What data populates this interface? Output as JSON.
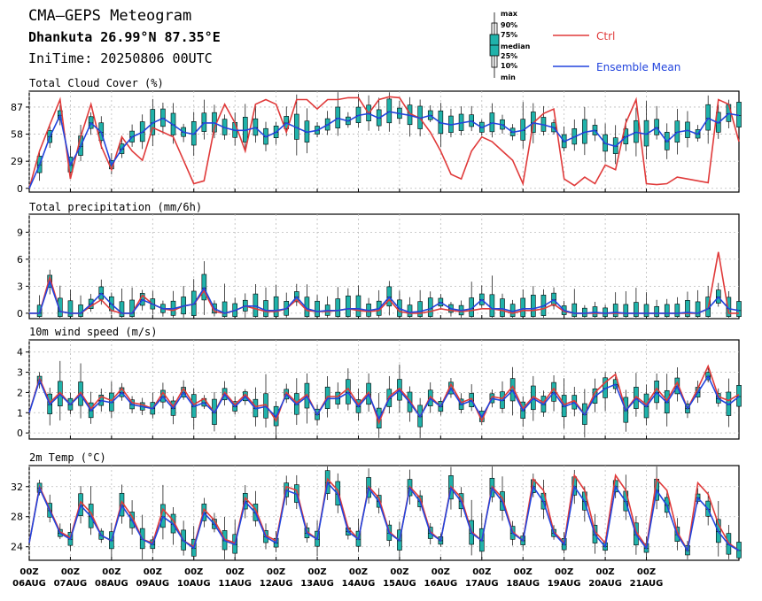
{
  "header": {
    "title": "CMA—GEPS Meteogram",
    "location": "Dhankuta 26.99°N 87.35°E",
    "init_time": "IniTime: 20250806 00UTC"
  },
  "legend": {
    "box_labels": [
      "max",
      "90%",
      "75%",
      "median",
      "25%",
      "10%",
      "min"
    ],
    "ctrl_label": "Ctrl",
    "mean_label": "Ensemble Mean",
    "ctrl_color": "#e03a3a",
    "mean_color": "#2244dd",
    "box_color": "#20b2aa"
  },
  "x_axis": {
    "hour_labels": [
      "00Z",
      "00Z",
      "00Z",
      "00Z",
      "00Z",
      "00Z",
      "00Z",
      "00Z",
      "00Z",
      "00Z",
      "00Z",
      "00Z",
      "00Z",
      "00Z",
      "00Z",
      "00Z"
    ],
    "date_labels": [
      "06AUG",
      "07AUG",
      "08AUG",
      "09AUG",
      "10AUG",
      "11AUG",
      "12AUG",
      "13AUG",
      "14AUG",
      "15AUG",
      "16AUG",
      "17AUG",
      "18AUG",
      "19AUG",
      "20AUG",
      "21AUG"
    ]
  },
  "chart_data": [
    {
      "type": "boxplot",
      "title": "Total Cloud Cover (%)",
      "ylim": [
        -4,
        104
      ],
      "yticks": [
        0,
        29,
        58,
        87
      ],
      "ytick_labels": [
        "0",
        "29",
        "58",
        "87"
      ],
      "step_hours": 6,
      "ctrl": [
        0,
        40,
        68,
        95,
        10,
        55,
        90,
        45,
        20,
        55,
        40,
        30,
        65,
        60,
        55,
        30,
        5,
        8,
        65,
        90,
        70,
        40,
        90,
        95,
        90,
        60,
        95,
        95,
        85,
        95,
        95,
        97,
        97,
        80,
        95,
        98,
        97,
        80,
        75,
        60,
        40,
        15,
        10,
        40,
        55,
        50,
        40,
        30,
        5,
        70,
        80,
        85,
        10,
        3,
        12,
        5,
        25,
        20,
        70,
        95,
        5,
        4,
        5,
        12,
        10,
        8,
        6,
        95,
        90,
        50
      ],
      "mean": [
        0,
        25,
        55,
        78,
        25,
        45,
        70,
        60,
        25,
        42,
        55,
        60,
        70,
        75,
        68,
        60,
        58,
        70,
        70,
        65,
        62,
        62,
        65,
        55,
        60,
        70,
        65,
        60,
        62,
        68,
        75,
        72,
        78,
        80,
        75,
        82,
        80,
        78,
        75,
        78,
        70,
        68,
        70,
        72,
        65,
        70,
        68,
        60,
        62,
        70,
        68,
        65,
        50,
        55,
        60,
        62,
        48,
        45,
        55,
        60,
        58,
        65,
        50,
        60,
        62,
        58,
        75,
        70,
        80,
        78
      ]
    },
    {
      "type": "boxplot",
      "title": "Total precipitation (mm/6h)",
      "ylim": [
        -0.6,
        11
      ],
      "yticks": [
        0,
        3,
        6,
        9
      ],
      "ytick_labels": [
        "0",
        "3",
        "6",
        "9"
      ],
      "step_hours": 6,
      "ctrl": [
        0,
        0,
        4.0,
        0.2,
        0,
        0,
        0.8,
        1.5,
        0.3,
        0,
        0,
        2.0,
        1.0,
        0.5,
        0.3,
        0.8,
        1.0,
        2.5,
        0.2,
        0,
        0.3,
        0.8,
        0.5,
        0.2,
        0.2,
        0.5,
        1.5,
        0.3,
        0.2,
        0.2,
        0.3,
        0.5,
        0.3,
        0.2,
        0.3,
        1.5,
        0.2,
        0,
        0,
        0.2,
        0.5,
        0.3,
        0.2,
        0.3,
        0.5,
        0.5,
        0.3,
        0,
        0.3,
        0.3,
        0.5,
        1.0,
        0.2,
        0,
        0,
        0,
        0,
        0,
        0,
        0,
        0,
        0,
        0,
        0,
        0,
        0,
        0.5,
        6.8,
        0,
        0
      ],
      "mean": [
        0,
        0,
        3.5,
        0.2,
        0,
        0,
        1.0,
        2.2,
        1.0,
        0,
        0,
        1.5,
        1.0,
        0.5,
        0.5,
        0.8,
        1.0,
        2.8,
        0.5,
        0,
        0.3,
        0.8,
        0.8,
        0.3,
        0.3,
        0.5,
        1.8,
        0.5,
        0.2,
        0.3,
        0.3,
        0.5,
        0.5,
        0.3,
        0.5,
        1.8,
        0.5,
        0.1,
        0.2,
        0.5,
        1.2,
        0.5,
        0.3,
        0.5,
        1.5,
        0.5,
        0.5,
        0.2,
        0.5,
        0.5,
        0.8,
        1.5,
        0.3,
        0,
        0,
        0.1,
        0,
        0.1,
        0,
        0,
        0,
        0,
        0,
        0,
        0.1,
        0,
        0.5,
        1.8,
        0.5,
        0.3
      ]
    },
    {
      "type": "boxplot",
      "title": "10m wind speed (m/s)",
      "ylim": [
        -0.3,
        4.6
      ],
      "yticks": [
        0,
        1,
        2,
        3,
        4
      ],
      "ytick_labels": [
        "0",
        "1",
        "2",
        "3",
        "4"
      ],
      "step_hours": 6,
      "ctrl": [
        1.0,
        2.7,
        1.5,
        2.0,
        1.4,
        2.0,
        1.2,
        1.8,
        1.6,
        2.2,
        1.5,
        1.4,
        1.2,
        2.0,
        1.3,
        2.2,
        1.4,
        1.7,
        1.0,
        2.0,
        1.4,
        1.9,
        1.3,
        1.4,
        0.6,
        2.0,
        1.5,
        1.9,
        0.9,
        1.8,
        1.8,
        2.2,
        1.4,
        2.0,
        0.5,
        1.8,
        2.2,
        1.6,
        0.8,
        1.8,
        1.3,
        2.4,
        1.5,
        1.7,
        0.6,
        1.8,
        1.7,
        2.3,
        1.2,
        1.8,
        1.5,
        2.2,
        1.4,
        1.6,
        0.9,
        2.0,
        2.5,
        2.9,
        1.1,
        1.8,
        1.4,
        2.2,
        1.6,
        2.5,
        1.2,
        2.2,
        3.3,
        1.8,
        1.6,
        1.9
      ],
      "mean": [
        1.0,
        2.6,
        1.4,
        1.9,
        1.4,
        1.9,
        1.1,
        1.6,
        1.5,
        2.0,
        1.4,
        1.3,
        1.2,
        1.8,
        1.2,
        2.0,
        1.3,
        1.5,
        1.0,
        1.9,
        1.3,
        1.8,
        1.2,
        1.3,
        0.8,
        1.9,
        1.4,
        1.8,
        0.9,
        1.7,
        1.7,
        2.0,
        1.3,
        1.9,
        0.7,
        1.7,
        2.1,
        1.5,
        0.8,
        1.7,
        1.3,
        2.2,
        1.4,
        1.6,
        0.8,
        1.7,
        1.6,
        2.1,
        1.1,
        1.7,
        1.4,
        2.0,
        1.3,
        1.5,
        0.9,
        1.8,
        2.2,
        2.4,
        1.1,
        1.7,
        1.3,
        2.0,
        1.5,
        2.3,
        1.2,
        2.0,
        2.8,
        1.7,
        1.4,
        1.8
      ]
    },
    {
      "type": "boxplot",
      "title": "2m Temp (°C)",
      "ylim": [
        22.2,
        34.8
      ],
      "yticks": [
        24,
        28,
        32
      ],
      "ytick_labels": [
        "24",
        "28",
        "32"
      ],
      "step_hours": 6,
      "ctrl": [
        24.5,
        32.0,
        29.0,
        26.0,
        25.2,
        30.0,
        28.5,
        25.5,
        24.8,
        30.0,
        28.0,
        25.0,
        24.5,
        29.0,
        27.5,
        24.8,
        24.0,
        29.0,
        27.5,
        25.0,
        24.5,
        30.5,
        29.0,
        25.5,
        24.8,
        32.0,
        31.5,
        26.0,
        25.0,
        33.0,
        31.5,
        26.5,
        25.0,
        32.0,
        30.5,
        26.0,
        24.8,
        32.0,
        30.5,
        26.0,
        24.8,
        32.0,
        30.5,
        26.0,
        24.8,
        32.0,
        30.5,
        26.0,
        24.8,
        33.0,
        31.5,
        26.0,
        24.5,
        33.5,
        31.5,
        26.0,
        24.5,
        33.5,
        31.5,
        26.0,
        24.0,
        33.0,
        31.5,
        26.0,
        23.5,
        32.5,
        31.0,
        27.0,
        24.5,
        23.5
      ],
      "mean": [
        24.5,
        31.8,
        28.8,
        25.8,
        25.0,
        29.5,
        28.0,
        25.5,
        24.8,
        29.5,
        27.5,
        25.0,
        24.3,
        28.0,
        27.0,
        24.8,
        23.8,
        28.5,
        27.0,
        24.8,
        24.3,
        30.0,
        28.5,
        25.3,
        24.5,
        31.5,
        31.0,
        25.8,
        25.0,
        32.5,
        31.0,
        26.0,
        25.0,
        31.8,
        30.0,
        25.8,
        24.8,
        31.8,
        30.0,
        25.8,
        24.8,
        31.8,
        30.0,
        25.8,
        24.8,
        31.8,
        30.0,
        25.8,
        24.8,
        32.0,
        30.0,
        25.8,
        24.3,
        32.0,
        30.0,
        25.6,
        24.0,
        32.0,
        30.0,
        25.6,
        23.8,
        31.5,
        29.5,
        25.6,
        23.5,
        30.5,
        29.0,
        26.0,
        24.3,
        23.5
      ]
    }
  ]
}
